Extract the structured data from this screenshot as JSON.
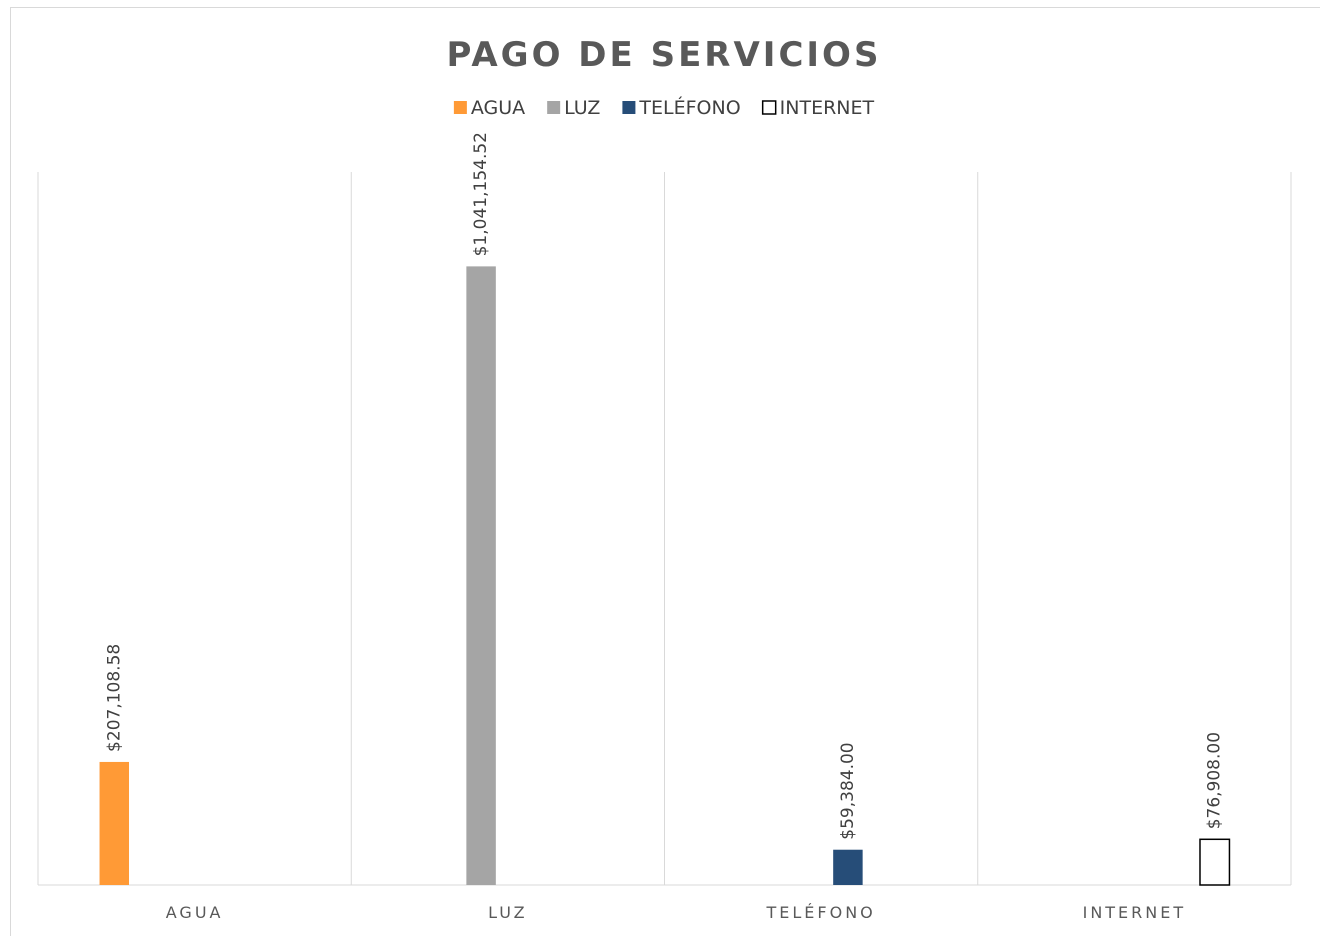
{
  "chart_data": {
    "type": "bar",
    "title": "PAGO DE SERVICIOS",
    "categories": [
      "AGUA",
      "LUZ",
      "TELÉFONO",
      "INTERNET"
    ],
    "series": [
      {
        "name": "AGUA",
        "color": "#ff9a36",
        "values": [
          207108.58,
          null,
          null,
          null
        ],
        "value_labels": [
          "$207,108.58",
          null,
          null,
          null
        ]
      },
      {
        "name": "LUZ",
        "color": "#a5a5a5",
        "values": [
          null,
          1041154.52,
          null,
          null
        ],
        "value_labels": [
          null,
          "$1,041,154.52",
          null,
          null
        ]
      },
      {
        "name": "TELÉFONO",
        "color": "#264d78",
        "values": [
          null,
          null,
          59384.0,
          null
        ],
        "value_labels": [
          null,
          null,
          "$59,384.00",
          null
        ]
      },
      {
        "name": "INTERNET",
        "color": "#ffffff",
        "values": [
          null,
          null,
          null,
          76908.0
        ],
        "value_labels": [
          null,
          null,
          null,
          "$76,908.00"
        ]
      }
    ],
    "ylim": [
      0,
      1200000
    ],
    "legend": "top"
  }
}
